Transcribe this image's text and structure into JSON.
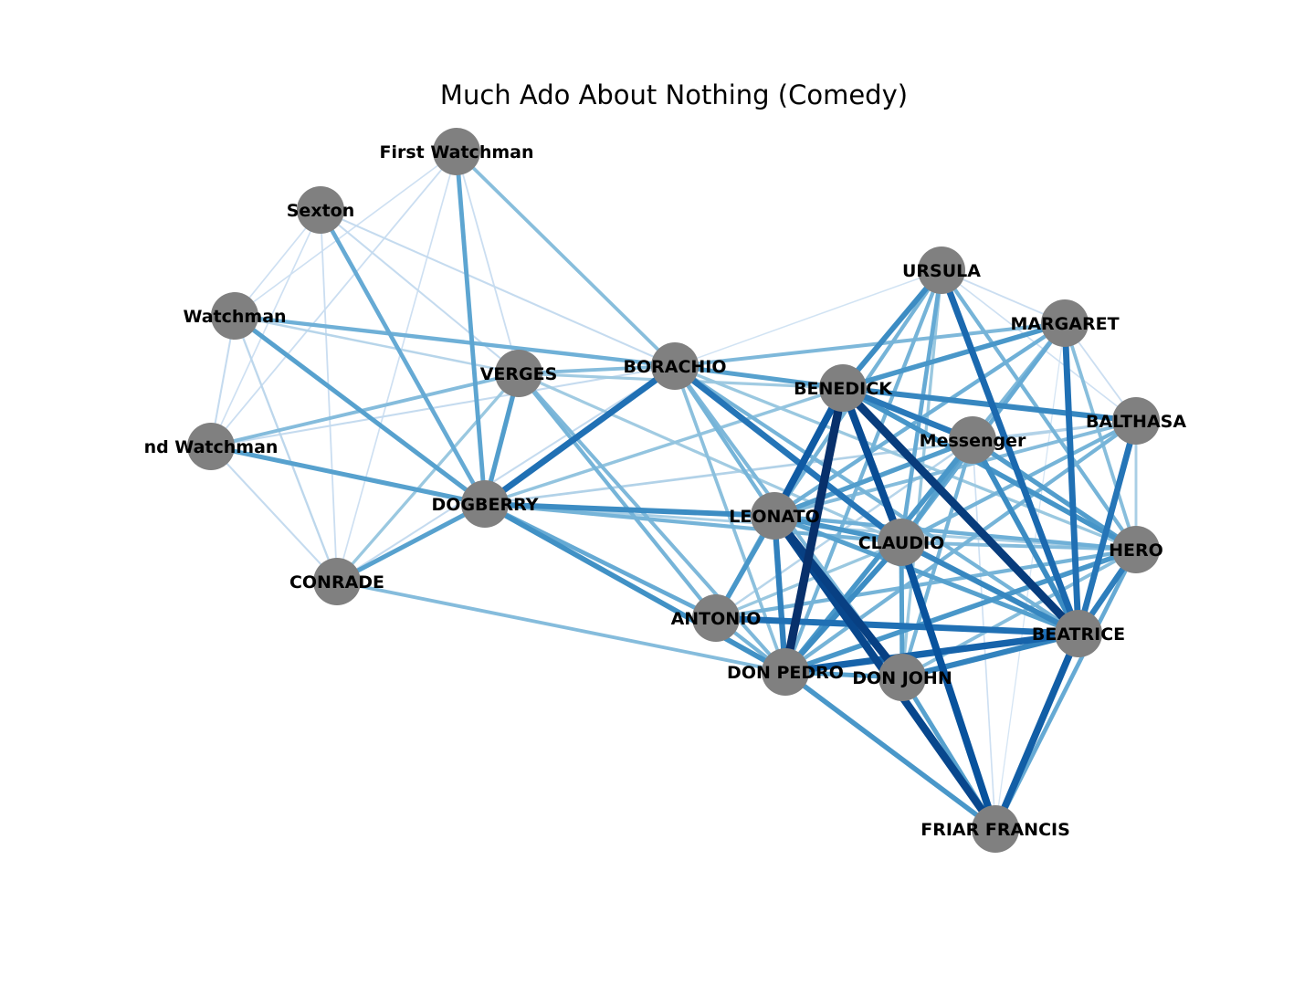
{
  "chart_data": {
    "type": "network",
    "title": "Much Ado About Nothing (Comedy)",
    "node_color": "#808080",
    "edge_colormap": "Blues",
    "nodes": [
      {
        "id": "FIRST_WATCHMAN",
        "label": "First Watchman"
      },
      {
        "id": "SEXTON",
        "label": "Sexton"
      },
      {
        "id": "WATCHMAN",
        "label": "Watchman"
      },
      {
        "id": "SECOND_WATCHMAN",
        "label": "nd Watchman"
      },
      {
        "id": "CONRADE",
        "label": "CONRADE"
      },
      {
        "id": "VERGES",
        "label": "VERGES"
      },
      {
        "id": "DOGBERRY",
        "label": "DOGBERRY"
      },
      {
        "id": "BORACHIO",
        "label": "BORACHIO"
      },
      {
        "id": "BENEDICK",
        "label": "BENEDICK"
      },
      {
        "id": "URSULA",
        "label": "URSULA"
      },
      {
        "id": "MARGARET",
        "label": "MARGARET"
      },
      {
        "id": "BALTHASAR",
        "label": "BALTHASA"
      },
      {
        "id": "MESSENGER",
        "label": "Messenger"
      },
      {
        "id": "LEONATO",
        "label": "LEONATO"
      },
      {
        "id": "CLAUDIO",
        "label": "CLAUDIO"
      },
      {
        "id": "HERO",
        "label": "HERO"
      },
      {
        "id": "ANTONIO",
        "label": "ANTONIO"
      },
      {
        "id": "BEATRICE",
        "label": "BEATRICE"
      },
      {
        "id": "DON_PEDRO",
        "label": "DON PEDRO"
      },
      {
        "id": "DON_JOHN",
        "label": "DON JOHN"
      },
      {
        "id": "FRIAR_FRANCIS",
        "label": "FRIAR FRANCIS"
      }
    ],
    "edges": [
      {
        "source": "BENEDICK",
        "target": "DON_PEDRO",
        "weight": 1.0
      },
      {
        "source": "BENEDICK",
        "target": "BEATRICE",
        "weight": 0.95
      },
      {
        "source": "LEONATO",
        "target": "DON_JOHN",
        "weight": 0.93
      },
      {
        "source": "LEONATO",
        "target": "FRIAR_FRANCIS",
        "weight": 0.9
      },
      {
        "source": "BENEDICK",
        "target": "CLAUDIO",
        "weight": 0.88
      },
      {
        "source": "CLAUDIO",
        "target": "FRIAR_FRANCIS",
        "weight": 0.85
      },
      {
        "source": "BENEDICK",
        "target": "LEONATO",
        "weight": 0.82
      },
      {
        "source": "BEATRICE",
        "target": "FRIAR_FRANCIS",
        "weight": 0.8
      },
      {
        "source": "DON_PEDRO",
        "target": "BEATRICE",
        "weight": 0.78
      },
      {
        "source": "URSULA",
        "target": "BEATRICE",
        "weight": 0.75
      },
      {
        "source": "MARGARET",
        "target": "BEATRICE",
        "weight": 0.72
      },
      {
        "source": "BALTHASAR",
        "target": "BEATRICE",
        "weight": 0.7
      },
      {
        "source": "BORACHIO",
        "target": "DOGBERRY",
        "weight": 0.72
      },
      {
        "source": "BORACHIO",
        "target": "CLAUDIO",
        "weight": 0.7
      },
      {
        "source": "ANTONIO",
        "target": "BEATRICE",
        "weight": 0.72
      },
      {
        "source": "BENEDICK",
        "target": "MESSENGER",
        "weight": 0.68
      },
      {
        "source": "BENEDICK",
        "target": "BALTHASAR",
        "weight": 0.62
      },
      {
        "source": "HERO",
        "target": "BEATRICE",
        "weight": 0.66
      },
      {
        "source": "BEATRICE",
        "target": "DON_JOHN",
        "weight": 0.64
      },
      {
        "source": "CLAUDIO",
        "target": "BEATRICE",
        "weight": 0.62
      },
      {
        "source": "MESSENGER",
        "target": "BEATRICE",
        "weight": 0.6
      },
      {
        "source": "LEONATO",
        "target": "DON_PEDRO",
        "weight": 0.65
      },
      {
        "source": "BENEDICK",
        "target": "HERO",
        "weight": 0.56
      },
      {
        "source": "DOGBERRY",
        "target": "LEONATO",
        "weight": 0.6
      },
      {
        "source": "DOGBERRY",
        "target": "DON_PEDRO",
        "weight": 0.58
      },
      {
        "source": "DOGBERRY",
        "target": "SECOND_WATCHMAN",
        "weight": 0.5
      },
      {
        "source": "DOGBERRY",
        "target": "WATCHMAN",
        "weight": 0.5
      },
      {
        "source": "DOGBERRY",
        "target": "CONRADE",
        "weight": 0.5
      },
      {
        "source": "DOGBERRY",
        "target": "VERGES",
        "weight": 0.52
      },
      {
        "source": "DOGBERRY",
        "target": "FIRST_WATCHMAN",
        "weight": 0.48
      },
      {
        "source": "DOGBERRY",
        "target": "SEXTON",
        "weight": 0.45
      },
      {
        "source": "DOGBERRY",
        "target": "CLAUDIO",
        "weight": 0.4
      },
      {
        "source": "DOGBERRY",
        "target": "ANTONIO",
        "weight": 0.45
      },
      {
        "source": "DOGBERRY",
        "target": "BENEDICK",
        "weight": 0.32
      },
      {
        "source": "DOGBERRY",
        "target": "HERO",
        "weight": 0.25
      },
      {
        "source": "DOGBERRY",
        "target": "BALTHASAR",
        "weight": 0.22
      },
      {
        "source": "WATCHMAN",
        "target": "BORACHIO",
        "weight": 0.42
      },
      {
        "source": "SECOND_WATCHMAN",
        "target": "VERGES",
        "weight": 0.36
      },
      {
        "source": "VERGES",
        "target": "ANTONIO",
        "weight": 0.4
      },
      {
        "source": "VERGES",
        "target": "DON_PEDRO",
        "weight": 0.38
      },
      {
        "source": "VERGES",
        "target": "BORACHIO",
        "weight": 0.36
      },
      {
        "source": "VERGES",
        "target": "CONRADE",
        "weight": 0.3
      },
      {
        "source": "VERGES",
        "target": "BENEDICK",
        "weight": 0.28
      },
      {
        "source": "VERGES",
        "target": "CLAUDIO",
        "weight": 0.28
      },
      {
        "source": "FIRST_WATCHMAN",
        "target": "BORACHIO",
        "weight": 0.35
      },
      {
        "source": "CONRADE",
        "target": "DON_PEDRO",
        "weight": 0.36
      },
      {
        "source": "BORACHIO",
        "target": "BENEDICK",
        "weight": 0.5
      },
      {
        "source": "BORACHIO",
        "target": "LEONATO",
        "weight": 0.4
      },
      {
        "source": "BORACHIO",
        "target": "MARGARET",
        "weight": 0.38
      },
      {
        "source": "BORACHIO",
        "target": "DON_JOHN",
        "weight": 0.38
      },
      {
        "source": "BORACHIO",
        "target": "DON_PEDRO",
        "weight": 0.34
      },
      {
        "source": "BORACHIO",
        "target": "BEATRICE",
        "weight": 0.4
      },
      {
        "source": "BORACHIO",
        "target": "HERO",
        "weight": 0.3
      },
      {
        "source": "DON_PEDRO",
        "target": "FRIAR_FRANCIS",
        "weight": 0.55
      },
      {
        "source": "DON_PEDRO",
        "target": "CLAUDIO",
        "weight": 0.6
      },
      {
        "source": "DON_PEDRO",
        "target": "MESSENGER",
        "weight": 0.55
      },
      {
        "source": "DON_PEDRO",
        "target": "HERO",
        "weight": 0.55
      },
      {
        "source": "DON_PEDRO",
        "target": "BALTHASAR",
        "weight": 0.4
      },
      {
        "source": "DON_PEDRO",
        "target": "URSULA",
        "weight": 0.4
      },
      {
        "source": "DON_PEDRO",
        "target": "MARGARET",
        "weight": 0.38
      },
      {
        "source": "DON_PEDRO",
        "target": "ANTONIO",
        "weight": 0.4
      },
      {
        "source": "DON_PEDRO",
        "target": "DON_JOHN",
        "weight": 0.5
      },
      {
        "source": "ANTONIO",
        "target": "LEONATO",
        "weight": 0.55
      },
      {
        "source": "ANTONIO",
        "target": "BENEDICK",
        "weight": 0.38
      },
      {
        "source": "ANTONIO",
        "target": "HERO",
        "weight": 0.4
      },
      {
        "source": "URSULA",
        "target": "BENEDICK",
        "weight": 0.6
      },
      {
        "source": "URSULA",
        "target": "CLAUDIO",
        "weight": 0.45
      },
      {
        "source": "URSULA",
        "target": "LEONATO",
        "weight": 0.4
      },
      {
        "source": "URSULA",
        "target": "HERO",
        "weight": 0.4
      },
      {
        "source": "URSULA",
        "target": "DON_JOHN",
        "weight": 0.3
      },
      {
        "source": "MARGARET",
        "target": "BENEDICK",
        "weight": 0.55
      },
      {
        "source": "MARGARET",
        "target": "CLAUDIO",
        "weight": 0.45
      },
      {
        "source": "MARGARET",
        "target": "LEONATO",
        "weight": 0.42
      },
      {
        "source": "MARGARET",
        "target": "HERO",
        "weight": 0.35
      },
      {
        "source": "MESSENGER",
        "target": "LEONATO",
        "weight": 0.52
      },
      {
        "source": "MESSENGER",
        "target": "CLAUDIO",
        "weight": 0.5
      },
      {
        "source": "MESSENGER",
        "target": "HERO",
        "weight": 0.52
      },
      {
        "source": "MESSENGER",
        "target": "DON_JOHN",
        "weight": 0.4
      },
      {
        "source": "BALTHASAR",
        "target": "CLAUDIO",
        "weight": 0.4
      },
      {
        "source": "BALTHASAR",
        "target": "LEONATO",
        "weight": 0.36
      },
      {
        "source": "BALTHASAR",
        "target": "HERO",
        "weight": 0.25
      },
      {
        "source": "LEONATO",
        "target": "CLAUDIO",
        "weight": 0.55
      },
      {
        "source": "LEONATO",
        "target": "HERO",
        "weight": 0.42
      },
      {
        "source": "LEONATO",
        "target": "BEATRICE",
        "weight": 0.5
      },
      {
        "source": "CLAUDIO",
        "target": "HERO",
        "weight": 0.36
      },
      {
        "source": "CLAUDIO",
        "target": "DON_JOHN",
        "weight": 0.5
      },
      {
        "source": "HERO",
        "target": "DON_JOHN",
        "weight": 0.35
      },
      {
        "source": "HERO",
        "target": "FRIAR_FRANCIS",
        "weight": 0.45
      },
      {
        "source": "DON_JOHN",
        "target": "FRIAR_FRANCIS",
        "weight": 0.5
      },
      {
        "source": "FIRST_WATCHMAN",
        "target": "SECOND_WATCHMAN",
        "weight": 0.12
      },
      {
        "source": "FIRST_WATCHMAN",
        "target": "WATCHMAN",
        "weight": 0.1
      },
      {
        "source": "FIRST_WATCHMAN",
        "target": "CONRADE",
        "weight": 0.1
      },
      {
        "source": "FIRST_WATCHMAN",
        "target": "VERGES",
        "weight": 0.12
      },
      {
        "source": "SEXTON",
        "target": "WATCHMAN",
        "weight": 0.1
      },
      {
        "source": "SEXTON",
        "target": "SECOND_WATCHMAN",
        "weight": 0.1
      },
      {
        "source": "SEXTON",
        "target": "CONRADE",
        "weight": 0.12
      },
      {
        "source": "SEXTON",
        "target": "VERGES",
        "weight": 0.15
      },
      {
        "source": "SEXTON",
        "target": "BORACHIO",
        "weight": 0.15
      },
      {
        "source": "WATCHMAN",
        "target": "SECOND_WATCHMAN",
        "weight": 0.15
      },
      {
        "source": "WATCHMAN",
        "target": "CONRADE",
        "weight": 0.18
      },
      {
        "source": "WATCHMAN",
        "target": "VERGES",
        "weight": 0.2
      },
      {
        "source": "SECOND_WATCHMAN",
        "target": "CONRADE",
        "weight": 0.15
      },
      {
        "source": "SECOND_WATCHMAN",
        "target": "BORACHIO",
        "weight": 0.15
      },
      {
        "source": "CONRADE",
        "target": "BORACHIO",
        "weight": 0.15
      },
      {
        "source": "URSULA",
        "target": "BORACHIO",
        "weight": 0.08
      },
      {
        "source": "URSULA",
        "target": "MARGARET",
        "weight": 0.12
      },
      {
        "source": "URSULA",
        "target": "BALTHASAR",
        "weight": 0.1
      },
      {
        "source": "MARGARET",
        "target": "BALTHASAR",
        "weight": 0.12
      },
      {
        "source": "BALTHASAR",
        "target": "MESSENGER",
        "weight": 0.2
      },
      {
        "source": "HERO",
        "target": "BALTHASAR",
        "weight": 0.08
      },
      {
        "source": "MESSENGER",
        "target": "ANTONIO",
        "weight": 0.2
      },
      {
        "source": "FRIAR_FRANCIS",
        "target": "ANTONIO",
        "weight": 0.15
      },
      {
        "source": "FRIAR_FRANCIS",
        "target": "MESSENGER",
        "weight": 0.1
      },
      {
        "source": "FRIAR_FRANCIS",
        "target": "MARGARET",
        "weight": 0.06
      },
      {
        "source": "CLAUDIO",
        "target": "ANTONIO",
        "weight": 0.3
      }
    ]
  }
}
